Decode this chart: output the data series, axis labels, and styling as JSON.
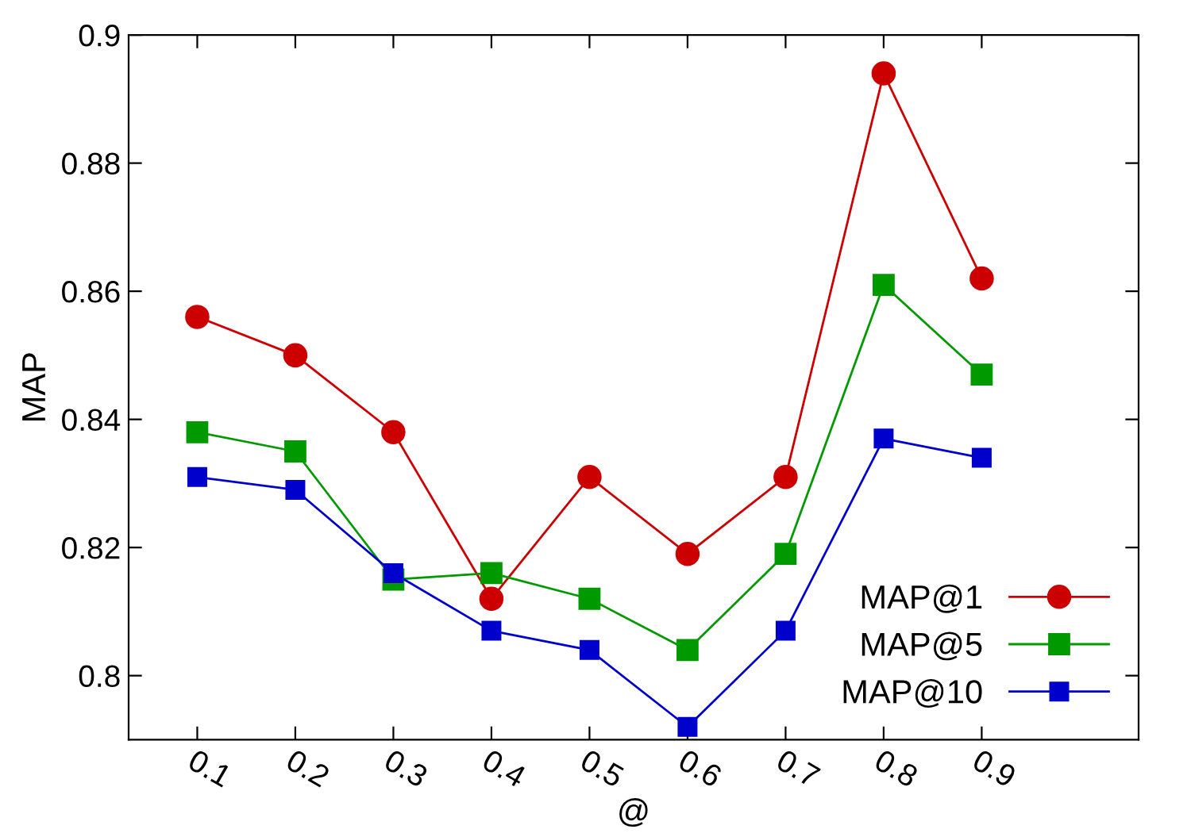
{
  "chart_data": {
    "type": "line",
    "xlabel": "@",
    "ylabel": "MAP",
    "x": [
      0.1,
      0.2,
      0.3,
      0.4,
      0.5,
      0.6,
      0.7,
      0.8,
      0.9
    ],
    "series": [
      {
        "name": "MAP@1",
        "color": "#cc0000",
        "marker": "circle",
        "values": [
          0.856,
          0.85,
          0.838,
          0.812,
          0.831,
          0.819,
          0.831,
          0.894,
          0.862
        ]
      },
      {
        "name": "MAP@5",
        "color": "#009900",
        "marker": "square",
        "values": [
          0.838,
          0.835,
          0.815,
          0.816,
          0.812,
          0.804,
          0.819,
          0.861,
          0.847
        ]
      },
      {
        "name": "MAP@10",
        "color": "#0000cc",
        "marker": "square",
        "values": [
          0.831,
          0.829,
          0.816,
          0.807,
          0.804,
          0.792,
          0.807,
          0.837,
          0.834
        ]
      }
    ],
    "xlim": [
      0.03,
      1.06
    ],
    "xticks": [
      0.1,
      0.2,
      0.3,
      0.4,
      0.5,
      0.6,
      0.7,
      0.8,
      0.9
    ],
    "ylim": [
      0.79,
      0.9
    ],
    "yticks": [
      0.8,
      0.82,
      0.84,
      0.86,
      0.88,
      0.9
    ],
    "grid": false,
    "legend": "bottom right",
    "line_style": "solid"
  }
}
